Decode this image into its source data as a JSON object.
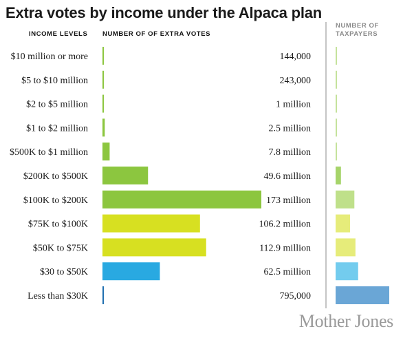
{
  "title": "Extra votes by income under the Alpaca plan",
  "headers": {
    "income_levels": "INCOME LEVELS",
    "extra_votes": "NUMBER OF OF EXTRA VOTES",
    "taxpayers": "NUMBER OF TAXPAYERS"
  },
  "brand": "Mother Jones",
  "chart_data": {
    "type": "bar",
    "orientation": "horizontal",
    "title": "Extra votes by income under the Alpaca plan",
    "categories": [
      "$10 million or more",
      "$5 to $10 million",
      "$2 to $5 million",
      "$1 to $2 million",
      "$500K to $1 million",
      "$200K to $500K",
      "$100K to $200K",
      "$75K to $100K",
      "$50K to $75K",
      "$30 to $50K",
      "Less than $30K"
    ],
    "series": [
      {
        "name": "NUMBER OF OF EXTRA VOTES",
        "values": [
          144000,
          243000,
          1000000,
          2500000,
          7800000,
          49600000,
          173000000,
          106200000,
          112900000,
          62500000,
          795000
        ],
        "value_labels": [
          "144,000",
          "243,000",
          "1 million",
          "2.5 million",
          "7.8 million",
          "49.6 million",
          "173 million",
          "106.2 million",
          "112.9 million",
          "62.5 million",
          "795,000"
        ],
        "colors": [
          "#8cc63f",
          "#8cc63f",
          "#8cc63f",
          "#8cc63f",
          "#8cc63f",
          "#8cc63f",
          "#8cc63f",
          "#d7e021",
          "#d7e021",
          "#29a9e1",
          "#1f6fb0"
        ],
        "xlim": [
          0,
          173000000
        ]
      },
      {
        "name": "NUMBER OF TAXPAYERS",
        "relative_values": [
          0.01,
          0.01,
          0.01,
          0.01,
          0.02,
          0.1,
          0.35,
          0.27,
          0.37,
          0.42,
          1.0
        ],
        "colors": [
          "#c5e29c",
          "#c5e29c",
          "#c5e29c",
          "#c5e29c",
          "#c5e29c",
          "#a6d46a",
          "#bfe08a",
          "#e6ec7a",
          "#e6ec7a",
          "#73ccee",
          "#6aa6d6"
        ]
      }
    ],
    "grid": false,
    "legend": "none"
  }
}
